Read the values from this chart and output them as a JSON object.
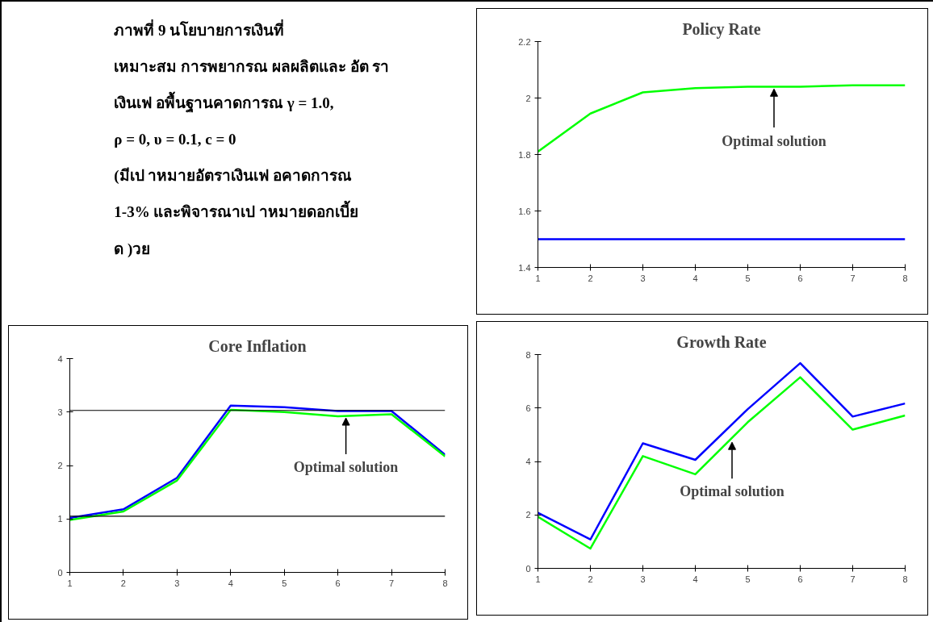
{
  "chart_data": [
    {
      "type": "other",
      "annotations": [
        "ภาพที่  9  นโยบายการเงินที่",
        "เหมาะสม  การพยากรณ   ผลผลิตและ อัต รา",
        "เงินเฟ    อพื้นฐานคาดการณ  γ = 1.0,",
        "ρ = 0, υ = 0.1,  c = 0",
        " (มีเป    าหมายอัตราเงินเฟ    อคาดการณ",
        "1-3% และพิจารณาเป    าหมายดอกเบี้ย",
        "ด    )วย"
      ]
    },
    {
      "type": "line",
      "title": "Policy Rate",
      "x": [
        1,
        2,
        3,
        4,
        5,
        6,
        7,
        8
      ],
      "xlim": [
        1,
        8
      ],
      "xticks": [
        1,
        2,
        3,
        4,
        5,
        6,
        7,
        8
      ],
      "ylim": [
        1.4,
        2.2
      ],
      "yticks": [
        1.4,
        1.6,
        1.8,
        2,
        2.2
      ],
      "series": [
        {
          "color": "#00ff00",
          "values": [
            1.81,
            1.945,
            2.02,
            2.035,
            2.04,
            2.04,
            2.045,
            2.045
          ]
        },
        {
          "color": "#0000ff",
          "values": [
            1.5,
            1.5,
            1.5,
            1.5,
            1.5,
            1.5,
            1.5,
            1.5
          ]
        }
      ],
      "annotations": [
        {
          "text": "Optimal solution",
          "x": 5.5,
          "y": 2.04
        }
      ]
    },
    {
      "type": "line",
      "title": "Core Inflation",
      "x": [
        1,
        2,
        3,
        4,
        5,
        6,
        7,
        8
      ],
      "xlim": [
        1,
        8
      ],
      "xticks": [
        1,
        2,
        3,
        4,
        5,
        6,
        7,
        8
      ],
      "ylim": [
        0,
        4
      ],
      "yticks": [
        0,
        1,
        2,
        3,
        4
      ],
      "series": [
        {
          "color": "#0000ff",
          "values": [
            1.02,
            1.18,
            1.77,
            3.12,
            3.09,
            3.02,
            3.02,
            2.2
          ]
        },
        {
          "color": "#00ff00",
          "values": [
            0.98,
            1.14,
            1.72,
            3.04,
            3.0,
            2.92,
            2.96,
            2.17
          ]
        }
      ],
      "ref_lines": [
        {
          "axis": "y",
          "value": 3.03,
          "color": "#000000"
        },
        {
          "axis": "y",
          "value": 1.05,
          "color": "#000000"
        }
      ],
      "annotations": [
        {
          "text": "Optimal solution",
          "x": 6.15,
          "y": 2.93
        }
      ]
    },
    {
      "type": "line",
      "title": "Growth Rate",
      "x": [
        1,
        2,
        3,
        4,
        5,
        6,
        7,
        8
      ],
      "xlim": [
        1,
        8
      ],
      "xticks": [
        1,
        2,
        3,
        4,
        5,
        6,
        7,
        8
      ],
      "ylim": [
        0,
        8
      ],
      "yticks": [
        0,
        2,
        4,
        6,
        8
      ],
      "series": [
        {
          "color": "#0000ff",
          "values": [
            2.08,
            1.08,
            4.68,
            4.06,
            5.96,
            7.68,
            5.68,
            6.17
          ]
        },
        {
          "color": "#00ff00",
          "values": [
            1.93,
            0.74,
            4.2,
            3.52,
            5.47,
            7.15,
            5.19,
            5.72
          ]
        }
      ],
      "annotations": [
        {
          "text": "Optimal solution",
          "x": 4.7,
          "y": 4.8
        }
      ]
    }
  ]
}
